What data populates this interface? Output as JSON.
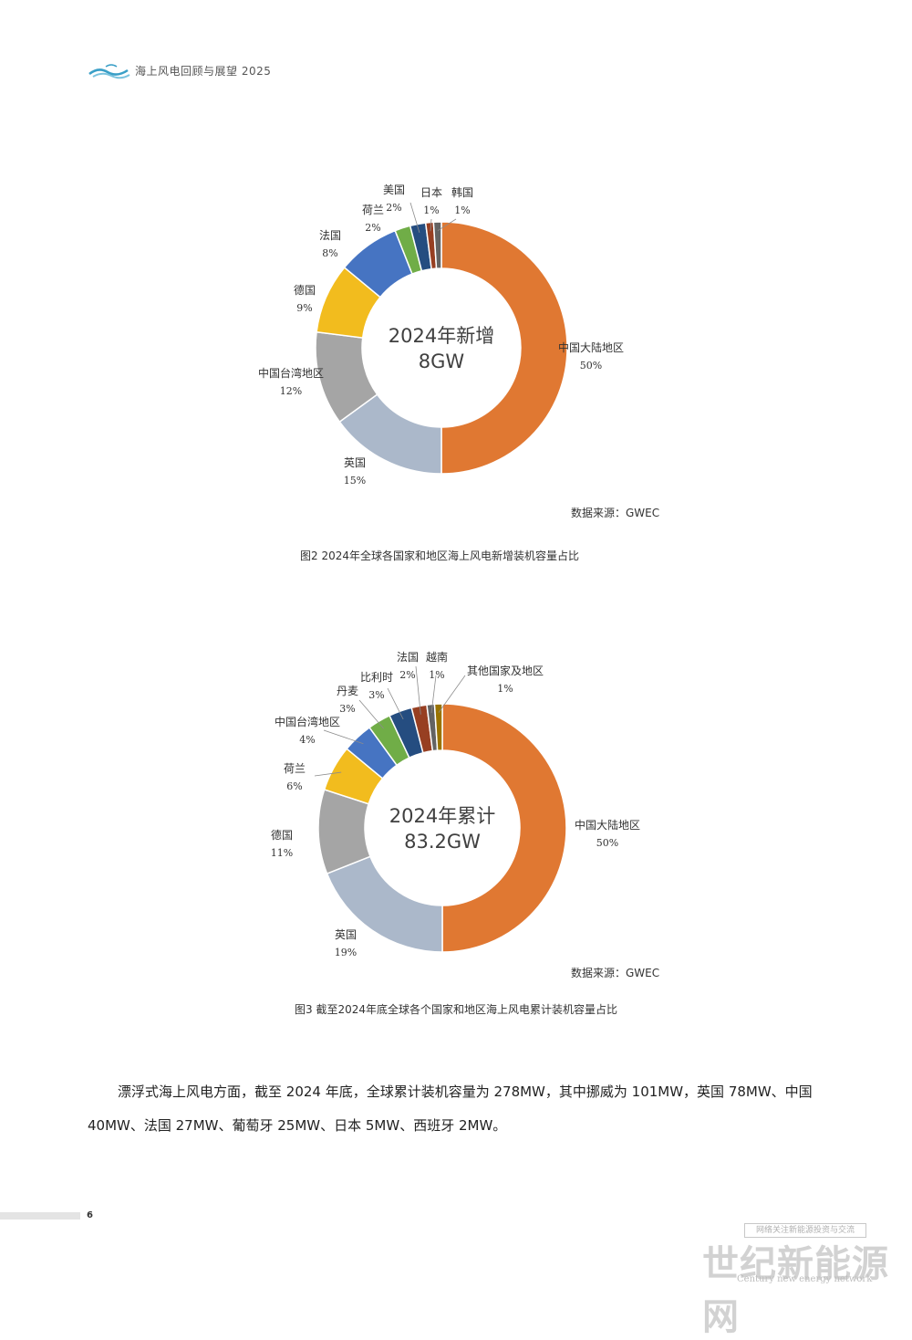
{
  "header": {
    "title": "海上风电回顾与展望 2025"
  },
  "charts": {
    "chart1_center": [
      "2024年新增",
      "8GW"
    ],
    "chart2_center": [
      "2024年累计",
      "83.2GW"
    ]
  },
  "chart_data": [
    {
      "type": "pie",
      "variant": "donut",
      "center_title": "2024年新增",
      "center_value": "8GW",
      "categories": [
        "中国大陆地区",
        "英国",
        "中国台湾地区",
        "德国",
        "法国",
        "荷兰",
        "美国",
        "日本",
        "韩国"
      ],
      "values": [
        50,
        15,
        12,
        9,
        8,
        2,
        2,
        1,
        1
      ],
      "labels": [
        "50%",
        "15%",
        "12%",
        "9%",
        "8%",
        "2%",
        "2%",
        "1%",
        "1%"
      ],
      "colors": [
        "#E07832",
        "#ABB8CA",
        "#A5A5A5",
        "#F2BC1E",
        "#4674C2",
        "#70AD47",
        "#254D80",
        "#973F22",
        "#636363"
      ]
    },
    {
      "type": "pie",
      "variant": "donut",
      "center_title": "2024年累计",
      "center_value": "83.2GW",
      "categories": [
        "中国大陆地区",
        "英国",
        "德国",
        "荷兰",
        "中国台湾地区",
        "丹麦",
        "比利时",
        "法国",
        "越南",
        "其他国家及地区"
      ],
      "values": [
        50,
        19,
        11,
        6,
        4,
        3,
        3,
        2,
        1,
        1
      ],
      "labels": [
        "50%",
        "19%",
        "11%",
        "6%",
        "4%",
        "3%",
        "3%",
        "2%",
        "1%",
        "1%"
      ],
      "colors": [
        "#E07832",
        "#ABB8CA",
        "#A5A5A5",
        "#F2BC1E",
        "#4674C2",
        "#70AD47",
        "#254D80",
        "#973F22",
        "#636363",
        "#997300"
      ]
    }
  ],
  "sources": {
    "source1": "数据来源：GWEC",
    "source2": "数据来源：GWEC"
  },
  "captions": {
    "caption1": "图2  2024年全球各国家和地区海上风电新增装机容量占比",
    "caption2": "图3  截至2024年底全球各个国家和地区海上风电累计装机容量占比"
  },
  "body": {
    "paragraph": "漂浮式海上风电方面，截至 2024 年底，全球累计装机容量为 278MW，其中挪威为 101MW，英国 78MW、中国 40MW、法国 27MW、葡萄牙 25MW、日本 5MW、西班牙 2MW。"
  },
  "footer": {
    "page_number": "6"
  },
  "watermark": {
    "top_text": "网络关注新能源投资与交流",
    "main_text": "世纪新能源网",
    "sub_text": "Century new energy network"
  }
}
